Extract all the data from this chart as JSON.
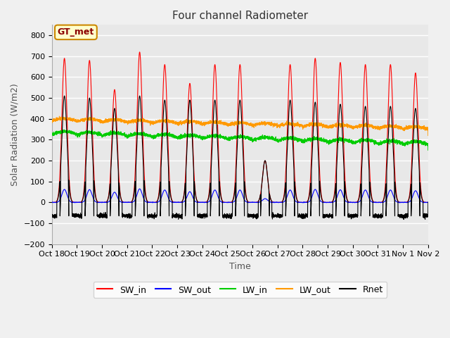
{
  "title": "Four channel Radiometer",
  "xlabel": "Time",
  "ylabel": "Solar Radiation (W/m2)",
  "ylim": [
    -200,
    850
  ],
  "yticks": [
    -200,
    -100,
    0,
    100,
    200,
    300,
    400,
    500,
    600,
    700,
    800
  ],
  "x_labels": [
    "Oct 18",
    "Oct 19",
    "Oct 20",
    "Oct 21",
    "Oct 22",
    "Oct 23",
    "Oct 24",
    "Oct 25",
    "Oct 26",
    "Oct 27",
    "Oct 28",
    "Oct 29",
    "Oct 30",
    "Oct 31",
    "Nov 1",
    "Nov 2"
  ],
  "n_days": 15,
  "background_color": "#f0f0f0",
  "plot_bg_color": "#e8e8e8",
  "grid_color": "#ffffff",
  "annotation_text": "GT_met",
  "annotation_bg": "#ffffcc",
  "annotation_border": "#cc8800",
  "legend_entries": [
    "SW_in",
    "SW_out",
    "LW_in",
    "LW_out",
    "Rnet"
  ],
  "line_colors": {
    "SW_in": "#ff0000",
    "SW_out": "#0000ff",
    "LW_in": "#00cc00",
    "LW_out": "#ff9900",
    "Rnet": "#000000"
  },
  "seed": 42
}
